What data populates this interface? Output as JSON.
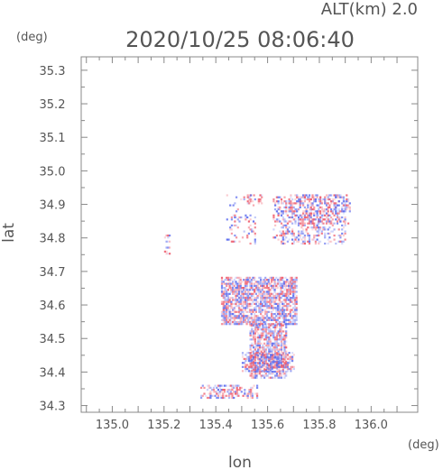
{
  "header": {
    "altitude_label": "ALT(km)  2.0",
    "timestamp": "2020/10/25  08:06:40",
    "y_unit": "(deg)"
  },
  "chart_data": {
    "type": "heatmap",
    "xlabel": "lon",
    "ylabel": "lat",
    "x_unit": "(deg)",
    "xlim": [
      134.88,
      136.18
    ],
    "ylim": [
      34.28,
      35.34
    ],
    "x_ticks": [
      "135.0",
      "135.2",
      "135.4",
      "135.6",
      "135.8",
      "136.0"
    ],
    "y_ticks": [
      "34.3",
      "34.4",
      "34.5",
      "34.6",
      "34.7",
      "34.8",
      "34.9",
      "35.0",
      "35.1",
      "35.2",
      "35.3"
    ],
    "grid": false,
    "colors": {
      "positive": "#ee5566",
      "negative": "#5566ee",
      "frame": "#888888"
    },
    "echo_regions": [
      {
        "lon": [
          135.42,
          135.71
        ],
        "lat": [
          34.54,
          34.68
        ],
        "density": 0.75
      },
      {
        "lon": [
          135.53,
          135.67
        ],
        "lat": [
          34.38,
          34.54
        ],
        "density": 0.7
      },
      {
        "lon": [
          135.5,
          135.7
        ],
        "lat": [
          34.4,
          34.46
        ],
        "density": 0.55
      },
      {
        "lon": [
          135.34,
          135.56
        ],
        "lat": [
          34.32,
          34.36
        ],
        "density": 0.45
      },
      {
        "lon": [
          135.62,
          135.9
        ],
        "lat": [
          34.78,
          34.92
        ],
        "density": 0.35
      },
      {
        "lon": [
          135.44,
          135.55
        ],
        "lat": [
          34.78,
          34.93
        ],
        "density": 0.15
      },
      {
        "lon": [
          135.52,
          135.58
        ],
        "lat": [
          34.9,
          34.93
        ],
        "density": 0.4
      },
      {
        "lon": [
          135.2,
          135.22
        ],
        "lat": [
          34.75,
          34.81
        ],
        "density": 0.4
      },
      {
        "lon": [
          135.68,
          135.92
        ],
        "lat": [
          34.84,
          34.93
        ],
        "density": 0.3
      }
    ]
  }
}
